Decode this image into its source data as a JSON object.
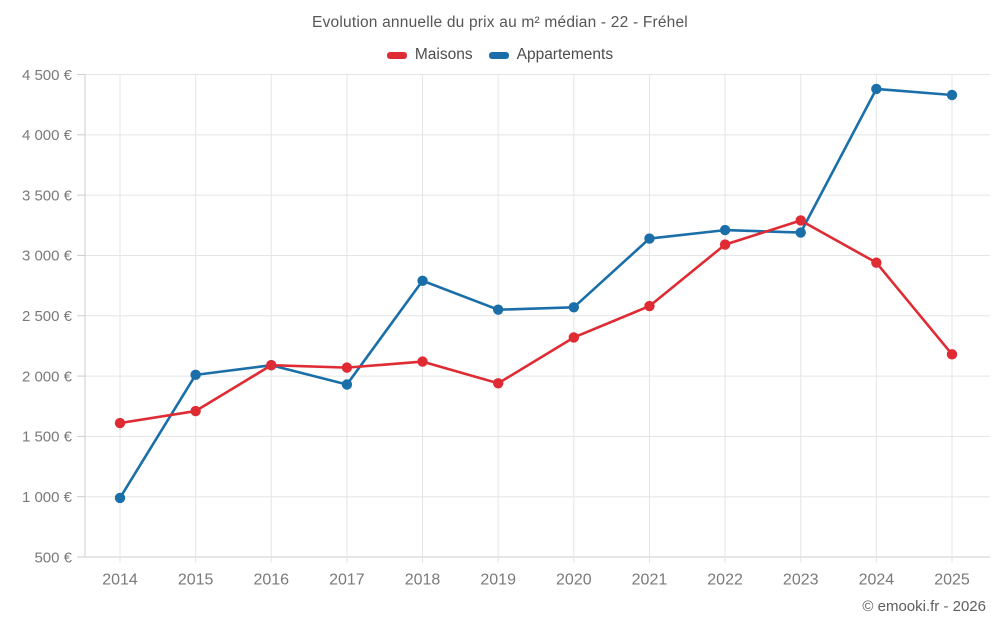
{
  "header": {
    "title": "Evolution annuelle du prix au m² médian - 22 - Fréhel"
  },
  "legend": {
    "items": [
      {
        "label": "Maisons",
        "color": "#df2b33"
      },
      {
        "label": "Appartements",
        "color": "#1b6fa9"
      }
    ]
  },
  "footer": {
    "credit": "© emooki.fr - 2026"
  },
  "chart_data": {
    "type": "line",
    "title": "Evolution annuelle du prix au m² médian - 22 - Fréhel",
    "categories": [
      "2014",
      "2015",
      "2016",
      "2017",
      "2018",
      "2019",
      "2020",
      "2021",
      "2022",
      "2023",
      "2024",
      "2025"
    ],
    "series": [
      {
        "name": "Maisons",
        "color": "#df2b33",
        "values": [
          1610,
          1710,
          2090,
          2070,
          2120,
          1940,
          2320,
          2580,
          3090,
          3290,
          2940,
          2180
        ]
      },
      {
        "name": "Appartements",
        "color": "#1b6fa9",
        "values": [
          990,
          2010,
          2090,
          1930,
          2790,
          2550,
          2570,
          3140,
          3210,
          3190,
          4380,
          4330
        ]
      }
    ],
    "xlabel": "",
    "ylabel": "",
    "ylim": [
      500,
      4500
    ],
    "ytick_step": 500,
    "ytick_labels": [
      "500 €",
      "1 000 €",
      "1 500 €",
      "2 000 €",
      "2 500 €",
      "3 000 €",
      "3 500 €",
      "4 000 €",
      "4 500 €"
    ],
    "grid": true,
    "legend_position": "top",
    "colors": {
      "grid": "#e5e5e5",
      "axis": "#cccccc",
      "tick_text": "#7a7a7a"
    }
  }
}
